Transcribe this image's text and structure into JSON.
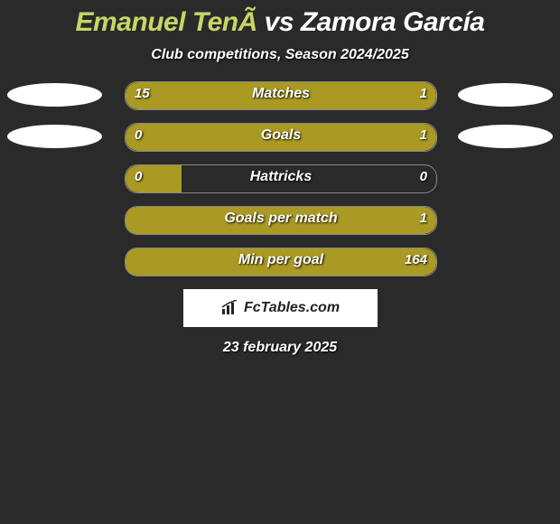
{
  "title": {
    "player_a": "Emanuel TenÃ",
    "vs": "vs",
    "player_b": "Zamora García",
    "color_a": "#c8d665",
    "color_b": "#ffffff"
  },
  "subtitle": "Club competitions, Season 2024/2025",
  "bar_color": "#aa9a24",
  "bar_border_color": "#888888",
  "bg_color": "#2a2a2a",
  "text_color": "#ffffff",
  "ellipse_color": "#ffffff",
  "stats": [
    {
      "label": "Matches",
      "left_val": "15",
      "right_val": "1",
      "left_pct": 78,
      "right_pct": 22,
      "show_ellipse": true
    },
    {
      "label": "Goals",
      "left_val": "0",
      "right_val": "1",
      "left_pct": 18,
      "right_pct": 82,
      "show_ellipse": true
    },
    {
      "label": "Hattricks",
      "left_val": "0",
      "right_val": "0",
      "left_pct": 18,
      "right_pct": 0,
      "show_ellipse": false
    },
    {
      "label": "Goals per match",
      "left_val": "",
      "right_val": "1",
      "left_pct": 0,
      "right_pct": 100,
      "show_ellipse": false
    },
    {
      "label": "Min per goal",
      "left_val": "",
      "right_val": "164",
      "left_pct": 0,
      "right_pct": 100,
      "show_ellipse": false
    }
  ],
  "logo_text": "FcTables.com",
  "date": "23 february 2025",
  "fontsize": {
    "title": 30,
    "subtitle": 16,
    "bar_label": 16,
    "values": 15,
    "logo": 16,
    "date": 16
  }
}
